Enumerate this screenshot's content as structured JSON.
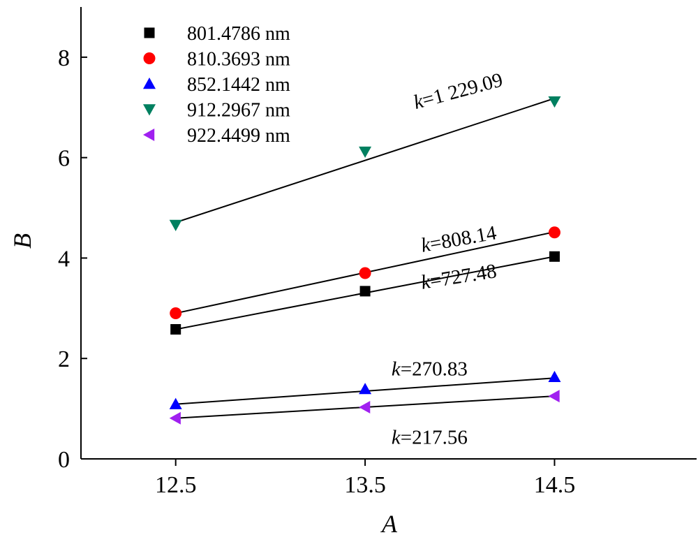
{
  "chart_data": {
    "type": "scatter",
    "xlabel": "A",
    "ylabel": "B",
    "xlim": [
      12.0,
      15.25
    ],
    "ylim": [
      0,
      9
    ],
    "x_ticks": [
      12.5,
      13.5,
      14.5
    ],
    "x_tick_labels": [
      "12.5",
      "13.5",
      "14.5"
    ],
    "y_ticks": [
      0,
      2,
      4,
      6,
      8
    ],
    "y_tick_labels": [
      "0",
      "2",
      "4",
      "6",
      "8"
    ],
    "grid": false,
    "legend_position": "top-left",
    "series": [
      {
        "name": "801.4786 nm",
        "marker": "square",
        "color": "#000000",
        "x": [
          12.5,
          13.5,
          14.5
        ],
        "y": [
          2.58,
          3.34,
          4.03
        ],
        "fit": {
          "x": [
            12.5,
            14.5
          ],
          "y": [
            2.58,
            4.03
          ]
        },
        "annotation": {
          "prefix": "k",
          "value": "=727.48",
          "at_x": 14.0,
          "at_y": 3.5,
          "angle": -9
        }
      },
      {
        "name": "810.3693 nm",
        "marker": "circle",
        "color": "#ff0000",
        "x": [
          12.5,
          13.5,
          14.5
        ],
        "y": [
          2.9,
          3.7,
          4.51
        ],
        "fit": {
          "x": [
            12.5,
            14.5
          ],
          "y": [
            2.9,
            4.52
          ]
        },
        "annotation": {
          "prefix": "k",
          "value": "=808.14",
          "at_x": 14.0,
          "at_y": 4.25,
          "angle": -10
        }
      },
      {
        "name": "852.1442 nm",
        "marker": "triangle-up",
        "color": "#0000ff",
        "x": [
          12.5,
          13.5,
          14.5
        ],
        "y": [
          1.09,
          1.39,
          1.63
        ],
        "fit": {
          "x": [
            12.5,
            14.5
          ],
          "y": [
            1.09,
            1.61
          ]
        },
        "annotation": {
          "prefix": "k",
          "value": "=270.83",
          "at_x": 13.84,
          "at_y": 1.66,
          "angle": 0
        }
      },
      {
        "name": "912.2967 nm",
        "marker": "triangle-down",
        "color": "#008060",
        "x": [
          12.5,
          13.5,
          14.5
        ],
        "y": [
          4.66,
          6.12,
          7.12
        ],
        "fit": {
          "x": [
            12.5,
            14.5
          ],
          "y": [
            4.71,
            7.18
          ]
        },
        "annotation": {
          "prefix": "k",
          "value": "=1 229.09",
          "at_x": 14.0,
          "at_y": 7.2,
          "angle": -15
        }
      },
      {
        "name": "922.4499 nm",
        "marker": "triangle-left",
        "color": "#a020f0",
        "x": [
          12.5,
          13.5,
          14.5
        ],
        "y": [
          0.81,
          1.03,
          1.25
        ],
        "fit": {
          "x": [
            12.5,
            14.5
          ],
          "y": [
            0.81,
            1.25
          ]
        },
        "annotation": {
          "prefix": "k",
          "value": "=217.56",
          "at_x": 13.84,
          "at_y": 0.3,
          "angle": 0
        }
      }
    ]
  }
}
